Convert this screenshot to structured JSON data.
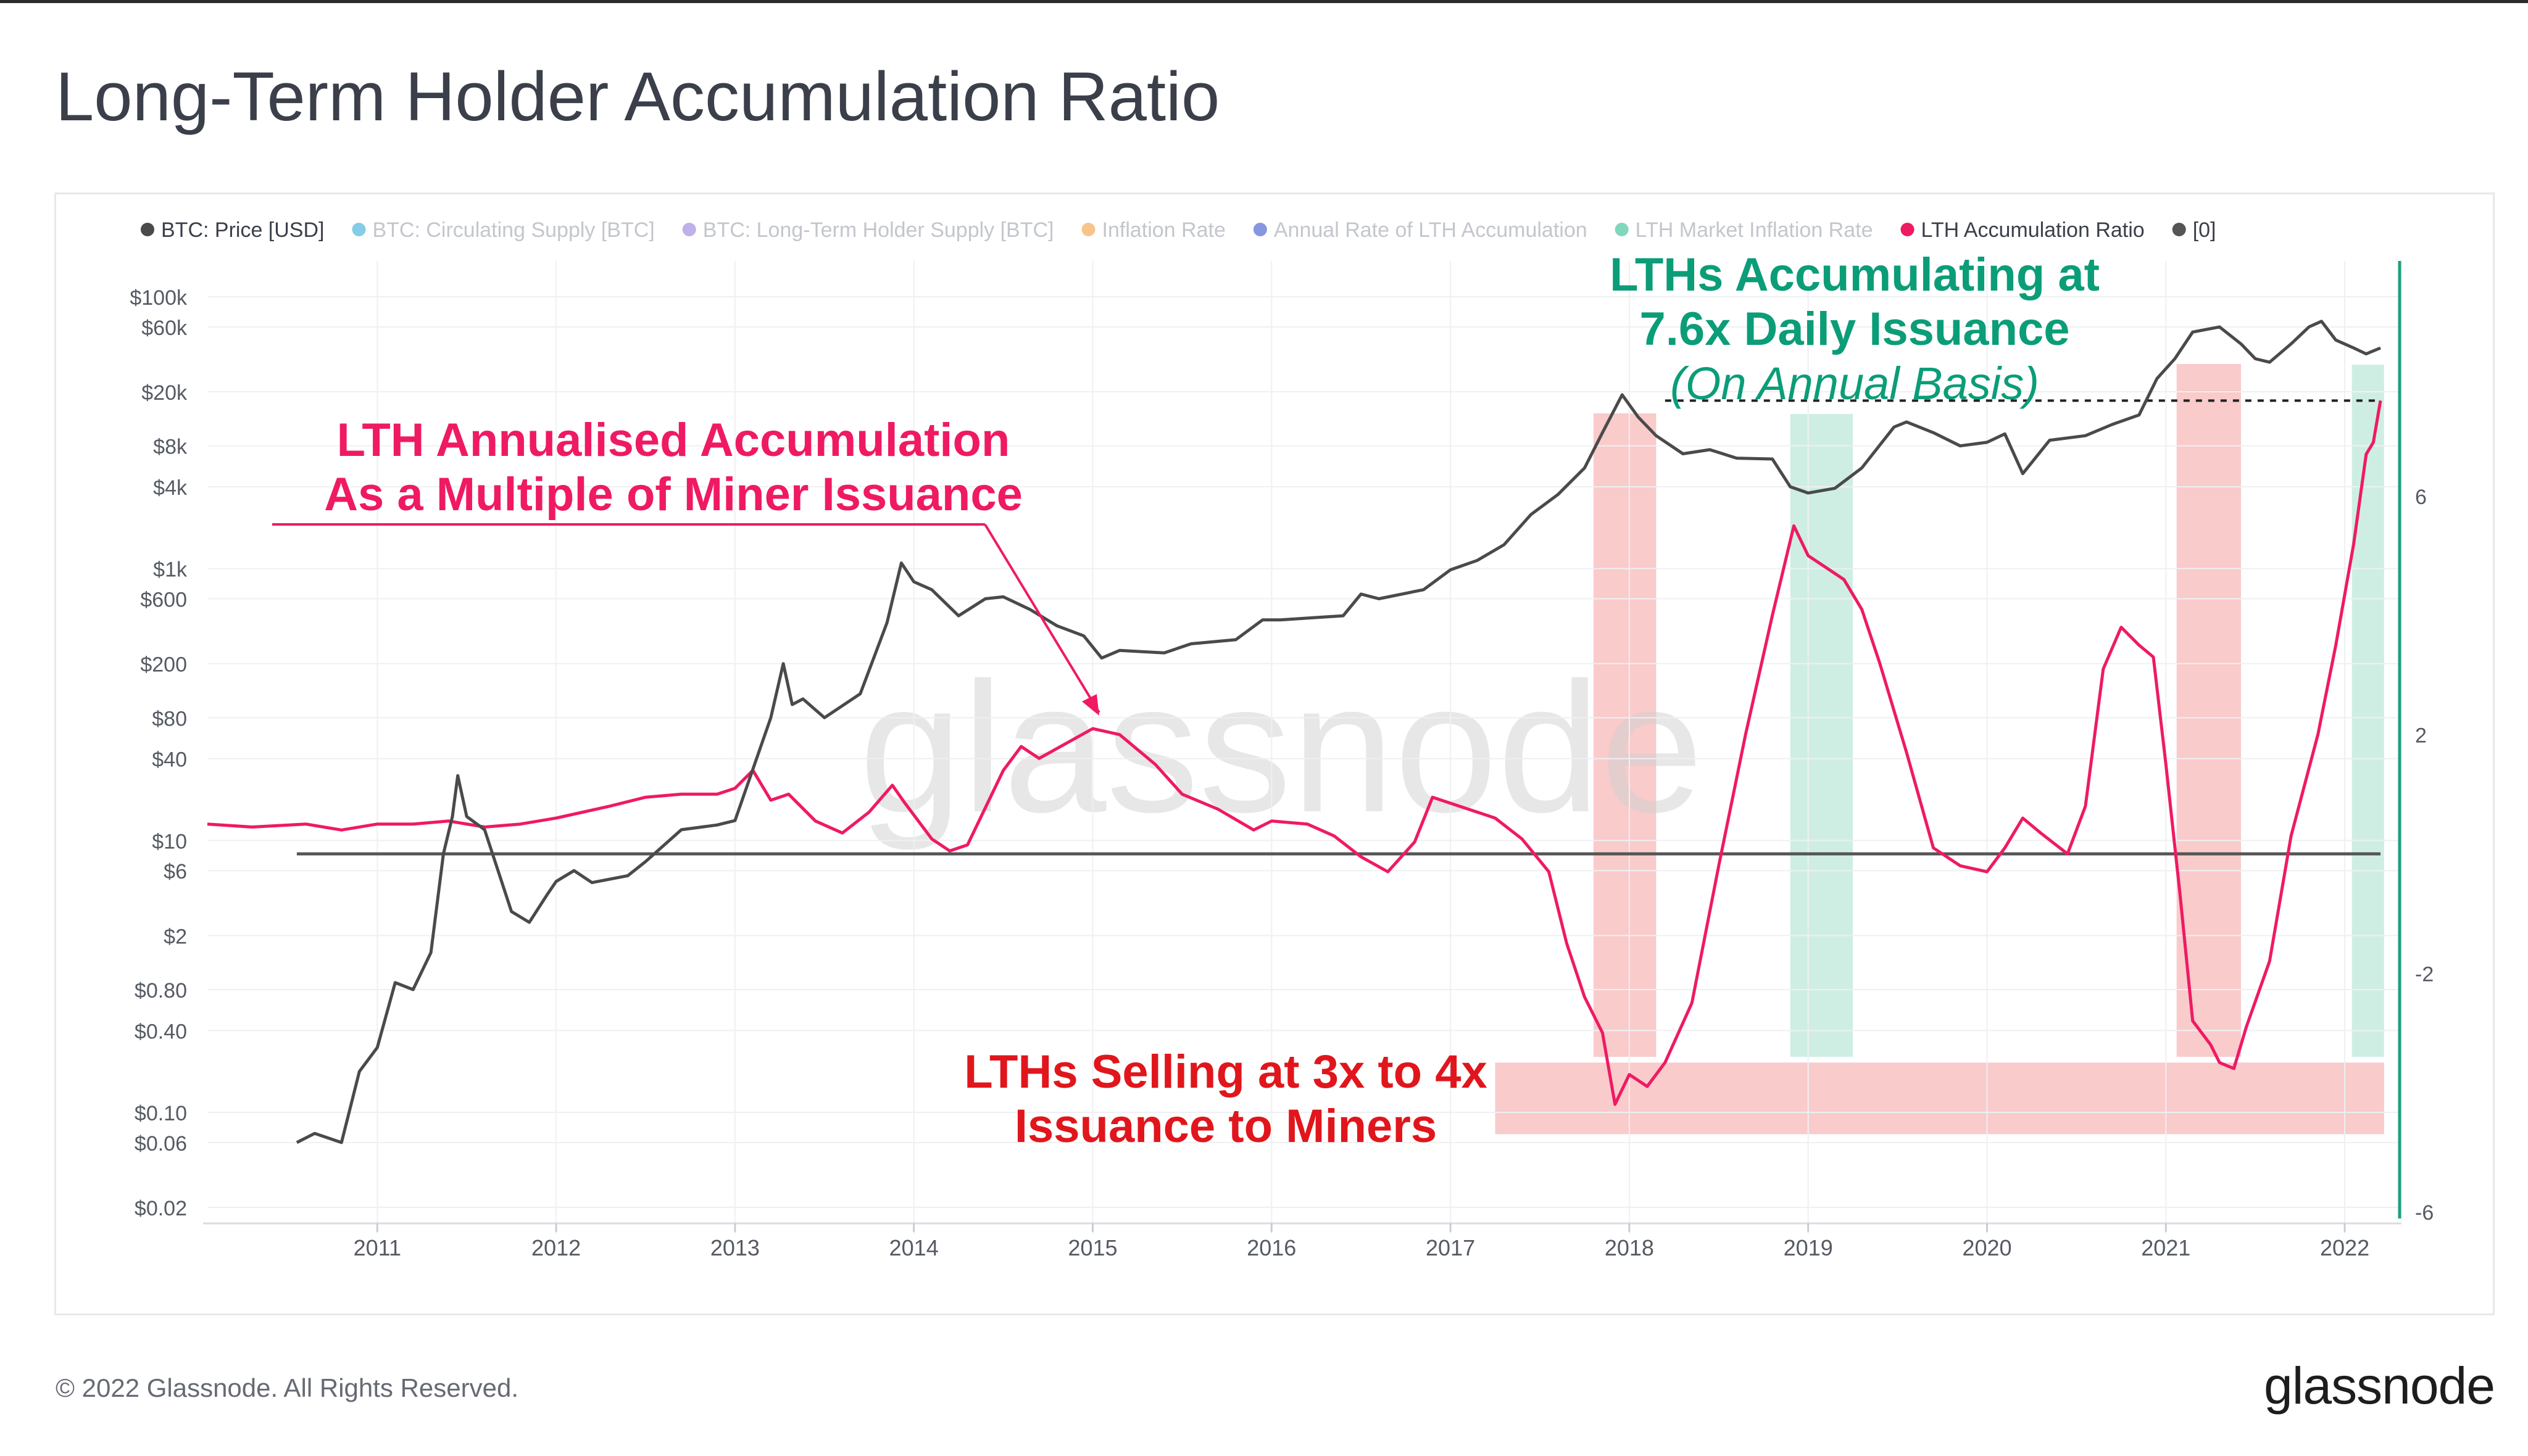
{
  "page": {
    "title": "Long-Term Holder Accumulation Ratio",
    "footer": "© 2022 Glassnode. All Rights Reserved.",
    "brand": "glassnode",
    "watermark": "glassnode"
  },
  "colors": {
    "price": "#4a4a4a",
    "ratio": "#ef1a63",
    "zero_line": "#555555",
    "right_axis": "#1f9e80",
    "red_zone": "#f7b9b9",
    "green_zone": "#bfe8d9",
    "title_pink": "#ef1a63",
    "title_red": "#e0161c",
    "title_green": "#0b9d78"
  },
  "chart_data": {
    "type": "line",
    "legend": {
      "placement": "top",
      "items": [
        {
          "label": "BTC: Price [USD]",
          "color": "#4a4a4a",
          "faded": false
        },
        {
          "label": "BTC: Circulating Supply [BTC]",
          "color": "#1fa2d6",
          "faded": true
        },
        {
          "label": "BTC: Long-Term Holder Supply [BTC]",
          "color": "#8a6fd9",
          "faded": true
        },
        {
          "label": "Inflation Rate",
          "color": "#f0962c",
          "faded": true
        },
        {
          "label": "Annual Rate of LTH Accumulation",
          "color": "#2340c8",
          "faded": true
        },
        {
          "label": "LTH Market Inflation Rate",
          "color": "#1cb488",
          "faded": true
        },
        {
          "label": "LTH Accumulation Ratio",
          "color": "#ef1a63",
          "faded": false
        },
        {
          "label": "[0]",
          "color": "#555555",
          "faded": false
        }
      ]
    },
    "x_axis": {
      "range": [
        2010.05,
        2022.3
      ],
      "ticks": [
        "2011",
        "2012",
        "2013",
        "2014",
        "2015",
        "2016",
        "2017",
        "2018",
        "2019",
        "2020",
        "2021",
        "2022"
      ]
    },
    "left_axis": {
      "scale": "log",
      "ticks": [
        "$100k",
        "$60k",
        "$20k",
        "$8k",
        "$4k",
        "$1k",
        "$600",
        "$200",
        "$80",
        "$40",
        "$10",
        "$6",
        "$2",
        "$0.80",
        "$0.40",
        "$0.10",
        "$0.06",
        "$0.02"
      ]
    },
    "right_axis": {
      "range": [
        -6,
        8.2
      ],
      "ticks": [
        "6",
        "2",
        "-2",
        "-6"
      ]
    },
    "series": [
      {
        "name": "BTC: Price [USD]",
        "axis": "left",
        "points": [
          [
            2010.55,
            0.06
          ],
          [
            2010.65,
            0.07
          ],
          [
            2010.8,
            0.06
          ],
          [
            2010.9,
            0.2
          ],
          [
            2011.0,
            0.3
          ],
          [
            2011.1,
            0.9
          ],
          [
            2011.2,
            0.8
          ],
          [
            2011.3,
            1.5
          ],
          [
            2011.37,
            8
          ],
          [
            2011.42,
            15
          ],
          [
            2011.45,
            30
          ],
          [
            2011.5,
            15
          ],
          [
            2011.6,
            12
          ],
          [
            2011.75,
            3
          ],
          [
            2011.85,
            2.5
          ],
          [
            2011.95,
            4
          ],
          [
            2012.0,
            5
          ],
          [
            2012.1,
            6
          ],
          [
            2012.2,
            4.9
          ],
          [
            2012.4,
            5.5
          ],
          [
            2012.5,
            7
          ],
          [
            2012.7,
            12
          ],
          [
            2012.9,
            13
          ],
          [
            2013.0,
            14
          ],
          [
            2013.2,
            80
          ],
          [
            2013.27,
            200
          ],
          [
            2013.32,
            100
          ],
          [
            2013.38,
            110
          ],
          [
            2013.5,
            80
          ],
          [
            2013.7,
            120
          ],
          [
            2013.85,
            400
          ],
          [
            2013.93,
            1100
          ],
          [
            2014.0,
            800
          ],
          [
            2014.1,
            700
          ],
          [
            2014.25,
            450
          ],
          [
            2014.4,
            600
          ],
          [
            2014.5,
            620
          ],
          [
            2014.65,
            500
          ],
          [
            2014.8,
            380
          ],
          [
            2014.95,
            320
          ],
          [
            2015.05,
            220
          ],
          [
            2015.15,
            250
          ],
          [
            2015.4,
            240
          ],
          [
            2015.55,
            280
          ],
          [
            2015.8,
            300
          ],
          [
            2015.95,
            420
          ],
          [
            2016.05,
            420
          ],
          [
            2016.4,
            450
          ],
          [
            2016.5,
            650
          ],
          [
            2016.6,
            600
          ],
          [
            2016.85,
            700
          ],
          [
            2017.0,
            980
          ],
          [
            2017.15,
            1150
          ],
          [
            2017.3,
            1500
          ],
          [
            2017.45,
            2500
          ],
          [
            2017.6,
            3500
          ],
          [
            2017.75,
            5500
          ],
          [
            2017.85,
            10000
          ],
          [
            2017.96,
            19000
          ],
          [
            2018.05,
            13000
          ],
          [
            2018.15,
            9500
          ],
          [
            2018.3,
            7000
          ],
          [
            2018.45,
            7500
          ],
          [
            2018.6,
            6500
          ],
          [
            2018.8,
            6400
          ],
          [
            2018.9,
            4000
          ],
          [
            2019.0,
            3600
          ],
          [
            2019.15,
            3900
          ],
          [
            2019.3,
            5500
          ],
          [
            2019.48,
            11000
          ],
          [
            2019.55,
            12000
          ],
          [
            2019.7,
            10000
          ],
          [
            2019.85,
            8000
          ],
          [
            2020.0,
            8500
          ],
          [
            2020.1,
            9800
          ],
          [
            2020.2,
            5000
          ],
          [
            2020.35,
            8800
          ],
          [
            2020.55,
            9500
          ],
          [
            2020.7,
            11500
          ],
          [
            2020.85,
            13500
          ],
          [
            2020.95,
            25000
          ],
          [
            2021.05,
            35000
          ],
          [
            2021.15,
            55000
          ],
          [
            2021.3,
            60000
          ],
          [
            2021.42,
            45000
          ],
          [
            2021.5,
            35000
          ],
          [
            2021.58,
            33000
          ],
          [
            2021.7,
            45000
          ],
          [
            2021.8,
            60000
          ],
          [
            2021.87,
            66000
          ],
          [
            2021.95,
            48000
          ],
          [
            2022.05,
            42000
          ],
          [
            2022.12,
            38000
          ],
          [
            2022.2,
            42000
          ]
        ]
      },
      {
        "name": "LTH Accumulation Ratio",
        "axis": "right",
        "points": [
          [
            2010.05,
            0.5
          ],
          [
            2010.3,
            0.45
          ],
          [
            2010.6,
            0.5
          ],
          [
            2010.8,
            0.4
          ],
          [
            2011.0,
            0.5
          ],
          [
            2011.2,
            0.5
          ],
          [
            2011.4,
            0.55
          ],
          [
            2011.6,
            0.45
          ],
          [
            2011.8,
            0.5
          ],
          [
            2012.0,
            0.6
          ],
          [
            2012.3,
            0.8
          ],
          [
            2012.5,
            0.95
          ],
          [
            2012.7,
            1.0
          ],
          [
            2012.9,
            1.0
          ],
          [
            2013.0,
            1.1
          ],
          [
            2013.1,
            1.4
          ],
          [
            2013.2,
            0.9
          ],
          [
            2013.3,
            1.0
          ],
          [
            2013.45,
            0.55
          ],
          [
            2013.6,
            0.35
          ],
          [
            2013.75,
            0.7
          ],
          [
            2013.88,
            1.15
          ],
          [
            2013.95,
            0.85
          ],
          [
            2014.1,
            0.25
          ],
          [
            2014.2,
            0.05
          ],
          [
            2014.3,
            0.15
          ],
          [
            2014.5,
            1.4
          ],
          [
            2014.6,
            1.8
          ],
          [
            2014.7,
            1.6
          ],
          [
            2014.85,
            1.85
          ],
          [
            2015.0,
            2.1
          ],
          [
            2015.15,
            2.0
          ],
          [
            2015.35,
            1.5
          ],
          [
            2015.5,
            1.0
          ],
          [
            2015.7,
            0.75
          ],
          [
            2015.9,
            0.4
          ],
          [
            2016.0,
            0.55
          ],
          [
            2016.2,
            0.5
          ],
          [
            2016.35,
            0.3
          ],
          [
            2016.5,
            -0.05
          ],
          [
            2016.65,
            -0.3
          ],
          [
            2016.8,
            0.2
          ],
          [
            2016.9,
            0.95
          ],
          [
            2017.05,
            0.8
          ],
          [
            2017.25,
            0.6
          ],
          [
            2017.4,
            0.25
          ],
          [
            2017.55,
            -0.3
          ],
          [
            2017.65,
            -1.5
          ],
          [
            2017.75,
            -2.4
          ],
          [
            2017.85,
            -3.0
          ],
          [
            2017.92,
            -4.2
          ],
          [
            2018.0,
            -3.7
          ],
          [
            2018.1,
            -3.9
          ],
          [
            2018.2,
            -3.5
          ],
          [
            2018.35,
            -2.5
          ],
          [
            2018.5,
            -0.2
          ],
          [
            2018.65,
            2.0
          ],
          [
            2018.8,
            4.0
          ],
          [
            2018.92,
            5.5
          ],
          [
            2019.0,
            5.0
          ],
          [
            2019.1,
            4.8
          ],
          [
            2019.2,
            4.6
          ],
          [
            2019.3,
            4.1
          ],
          [
            2019.4,
            3.2
          ],
          [
            2019.55,
            1.7
          ],
          [
            2019.7,
            0.1
          ],
          [
            2019.85,
            -0.2
          ],
          [
            2020.0,
            -0.3
          ],
          [
            2020.1,
            0.1
          ],
          [
            2020.2,
            0.6
          ],
          [
            2020.3,
            0.35
          ],
          [
            2020.45,
            0.0
          ],
          [
            2020.55,
            0.8
          ],
          [
            2020.65,
            3.1
          ],
          [
            2020.75,
            3.8
          ],
          [
            2020.85,
            3.5
          ],
          [
            2020.93,
            3.3
          ],
          [
            2021.0,
            1.5
          ],
          [
            2021.08,
            -0.7
          ],
          [
            2021.15,
            -2.8
          ],
          [
            2021.25,
            -3.2
          ],
          [
            2021.3,
            -3.5
          ],
          [
            2021.38,
            -3.6
          ],
          [
            2021.45,
            -2.9
          ],
          [
            2021.58,
            -1.8
          ],
          [
            2021.7,
            0.3
          ],
          [
            2021.85,
            2.0
          ],
          [
            2021.95,
            3.5
          ],
          [
            2022.05,
            5.2
          ],
          [
            2022.12,
            6.7
          ],
          [
            2022.16,
            6.9
          ],
          [
            2022.2,
            7.6
          ]
        ]
      },
      {
        "name": "[0]",
        "axis": "right",
        "points": [
          [
            2010.55,
            0
          ],
          [
            2022.2,
            0
          ]
        ]
      }
    ],
    "shaded_regions": [
      {
        "type": "red",
        "x": [
          2017.8,
          2018.15
        ]
      },
      {
        "type": "green",
        "x": [
          2018.9,
          2019.25
        ]
      },
      {
        "type": "red",
        "x": [
          2021.06,
          2021.42
        ]
      },
      {
        "type": "green",
        "x": [
          2022.04,
          2022.22
        ]
      },
      {
        "type": "red-band",
        "x": [
          2017.25,
          2022.22
        ],
        "y": [
          -3.5,
          -4.7
        ]
      }
    ],
    "reference_line": {
      "style": "dashed",
      "y": 7.6,
      "x": [
        2018.2,
        2022.2
      ]
    },
    "annotations": [
      {
        "id": "pink",
        "lines": [
          "LTH Annualised Accumulation",
          "As a Multiple of Miner Issuance"
        ]
      },
      {
        "id": "red",
        "lines": [
          "LTHs Selling at 3x to 4x",
          "Issuance to Miners"
        ]
      },
      {
        "id": "green",
        "lines": [
          "LTHs Accumulating at",
          "7.6x Daily Issuance",
          "(On Annual Basis)"
        ]
      }
    ]
  }
}
